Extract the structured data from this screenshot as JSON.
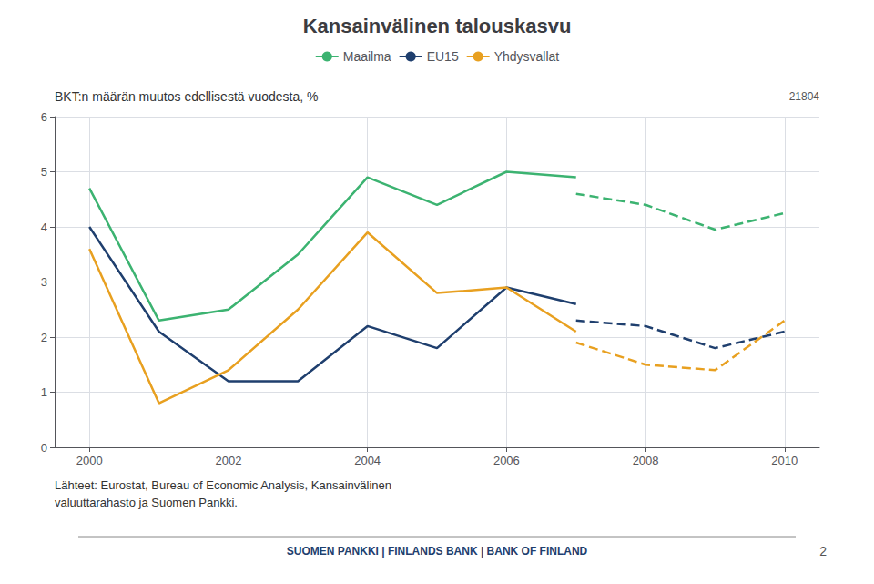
{
  "chart_data": {
    "type": "line",
    "title": "Kansainvälinen talouskasvu",
    "subtitle": "BKT:n määrän muutos edellisestä vuodesta, %",
    "annotations": [
      "21804",
      "Lähteet: Eurostat, Bureau of Economic Analysis, Kansainvälinen\nvaluuttarahasto ja Suomen Pankki.",
      "SUOMEN PANKKI | FINLANDS BANK | BANK OF FINLAND",
      "2"
    ],
    "x": [
      2000,
      2001,
      2002,
      2003,
      2004,
      2005,
      2006,
      2007,
      2008,
      2009,
      2010
    ],
    "xlim": [
      1999.5,
      2010.5
    ],
    "xticks": [
      2000,
      2002,
      2004,
      2006,
      2008,
      2010
    ],
    "ylim": [
      0,
      6
    ],
    "yticks": [
      0,
      1,
      2,
      3,
      4,
      5,
      6
    ],
    "grid": true,
    "legend": "top",
    "series": [
      {
        "name": "Maailma",
        "color": "#3cb371",
        "line_style": "solid",
        "values": [
          4.7,
          2.3,
          2.5,
          3.5,
          4.9,
          4.4,
          5.0,
          4.9,
          null,
          null,
          null
        ]
      },
      {
        "name": "Maailma",
        "color": "#3cb371",
        "line_style": "dashed",
        "values": [
          null,
          null,
          null,
          null,
          null,
          null,
          null,
          4.6,
          4.4,
          3.95,
          4.25
        ]
      },
      {
        "name": "EU15",
        "color": "#1f3f6e",
        "line_style": "solid",
        "values": [
          4.0,
          2.1,
          1.2,
          1.2,
          2.2,
          1.8,
          2.9,
          2.6,
          null,
          null,
          null
        ]
      },
      {
        "name": "EU15",
        "color": "#1f3f6e",
        "line_style": "dashed",
        "values": [
          null,
          null,
          null,
          null,
          null,
          null,
          null,
          2.3,
          2.2,
          1.8,
          2.1
        ]
      },
      {
        "name": "Yhdysvallat",
        "color": "#e8a020",
        "line_style": "solid",
        "values": [
          3.6,
          0.8,
          1.4,
          2.5,
          3.9,
          2.8,
          2.9,
          2.1,
          null,
          null,
          null
        ]
      },
      {
        "name": "Yhdysvallat",
        "color": "#e8a020",
        "line_style": "dashed",
        "values": [
          null,
          null,
          null,
          null,
          null,
          null,
          null,
          1.9,
          1.5,
          1.4,
          2.3
        ]
      }
    ]
  }
}
